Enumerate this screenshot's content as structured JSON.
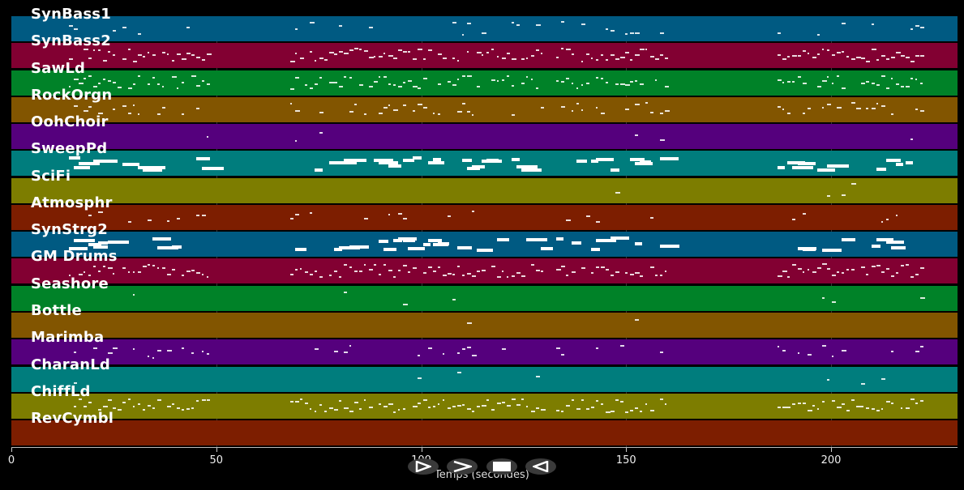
{
  "tracks": [
    {
      "name": "SynBass1",
      "color": "#005a82"
    },
    {
      "name": "SynBass2",
      "color": "#820032"
    },
    {
      "name": "SawLd",
      "color": "#008228"
    },
    {
      "name": "RockOrgn",
      "color": "#825500"
    },
    {
      "name": "OohChoir",
      "color": "#55007d"
    },
    {
      "name": "SweepPd",
      "color": "#007d7d"
    },
    {
      "name": "SciFi",
      "color": "#7d7d00"
    },
    {
      "name": "Atmosphr",
      "color": "#7d1e00"
    },
    {
      "name": "SynStrg2",
      "color": "#005a82"
    },
    {
      "name": "GM Drums",
      "color": "#820032"
    },
    {
      "name": "Seashore",
      "color": "#008228"
    },
    {
      "name": "Bottle",
      "color": "#825500"
    },
    {
      "name": "Marimba",
      "color": "#55007d"
    },
    {
      "name": "CharanLd",
      "color": "#007d7d"
    },
    {
      "name": "ChiffLd",
      "color": "#7d7d00"
    },
    {
      "name": "RevCymbl",
      "color": "#7d1e00"
    }
  ],
  "axis": {
    "label": "Temps (secondes)",
    "ticks": [
      0,
      50,
      100,
      150,
      200
    ],
    "range": [
      0,
      231
    ]
  },
  "controls": [
    {
      "name": "play-button",
      "icon": "play-outline-icon"
    },
    {
      "name": "fast-forward-button",
      "icon": "fast-forward-icon"
    },
    {
      "name": "stop-button",
      "icon": "stop-icon"
    },
    {
      "name": "rewind-button",
      "icon": "rewind-icon"
    }
  ]
}
